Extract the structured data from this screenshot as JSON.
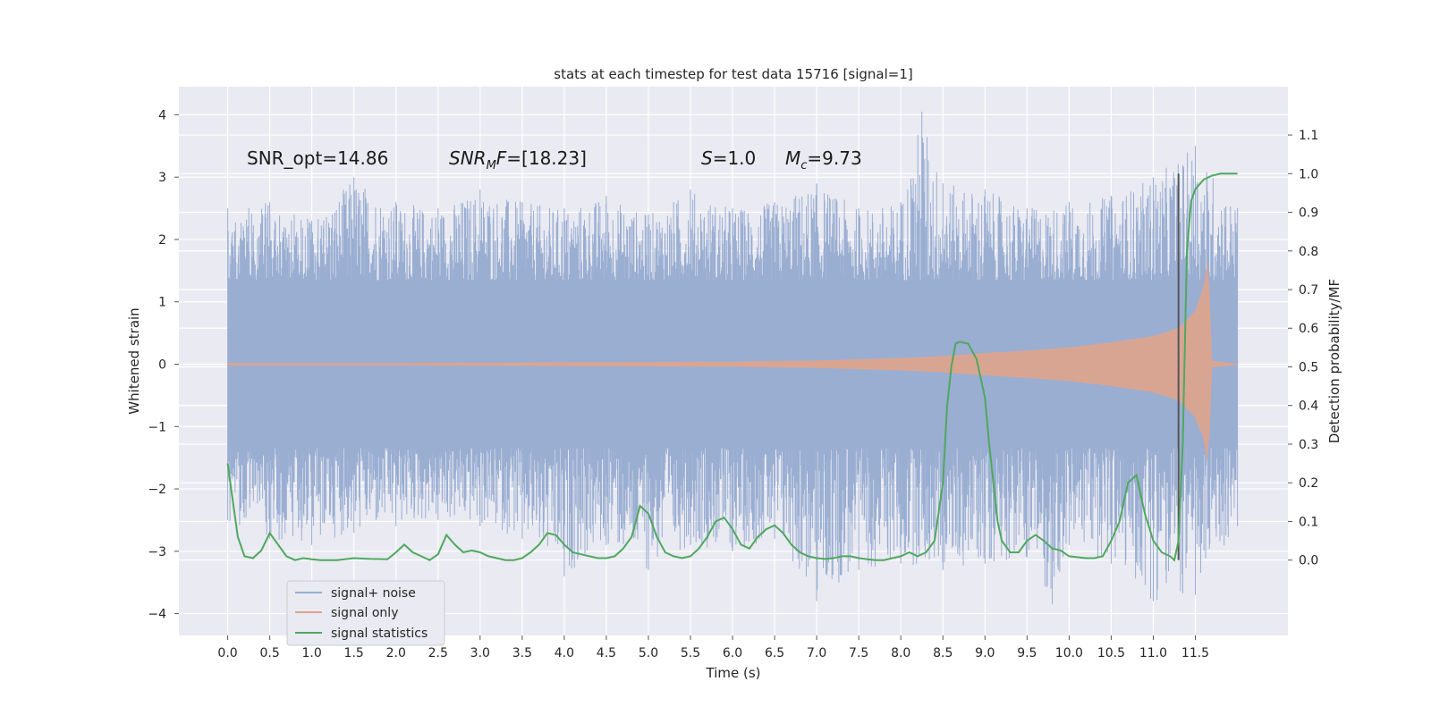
{
  "chart_data": {
    "type": "line",
    "title": "stats at each timestep for test data 15716 [signal=1]",
    "xlabel": "Time (s)",
    "ylabel": "Whitened strain",
    "y2label": "Detection probability/MF",
    "xlim": [
      -0.58,
      12.6
    ],
    "ylim": [
      -4.35,
      4.45
    ],
    "y2lim": [
      -0.195,
      1.225
    ],
    "x_ticks": [
      "0.0",
      "0.5",
      "1.0",
      "1.5",
      "2.0",
      "2.5",
      "3.0",
      "3.5",
      "4.0",
      "4.5",
      "5.0",
      "5.5",
      "6.0",
      "6.5",
      "7.0",
      "7.5",
      "8.0",
      "8.5",
      "9.0",
      "9.5",
      "10.0",
      "10.5",
      "11.0",
      "11.5"
    ],
    "y_ticks": [
      "4",
      "3",
      "2",
      "1",
      "0",
      "−1",
      "−2",
      "−3",
      "−4"
    ],
    "y2_ticks": [
      "1.1",
      "1.0",
      "0.9",
      "0.8",
      "0.7",
      "0.6",
      "0.5",
      "0.4",
      "0.3",
      "0.2",
      "0.1",
      "0.0"
    ],
    "grid": true,
    "legend_position": "lower-left",
    "annotations": [
      {
        "text": "SNR_opt=14.86",
        "x": 0.2,
        "y": 3.25
      },
      {
        "text_main": "SNR",
        "text_sub": "M",
        "text_rest": "F=[18.23]",
        "x": 2.6,
        "y": 3.25
      },
      {
        "text_main": "S",
        "text_rest": "=1.0",
        "x": 5.6,
        "y": 3.25
      },
      {
        "text_main": "M",
        "text_sub": "c",
        "text_rest": "=9.73",
        "x": 6.6,
        "y": 3.25
      }
    ],
    "vline_x": 11.3,
    "series": [
      {
        "name": "signal+ noise",
        "color": "#9aaed2",
        "x_range": [
          0.0,
          12.0
        ],
        "band_upper": [
          [
            0.0,
            2.5
          ],
          [
            0.5,
            2.6
          ],
          [
            1.0,
            2.3
          ],
          [
            1.5,
            3.0
          ],
          [
            2.0,
            2.6
          ],
          [
            2.5,
            2.5
          ],
          [
            3.0,
            2.8
          ],
          [
            3.5,
            2.6
          ],
          [
            4.0,
            2.5
          ],
          [
            4.5,
            2.7
          ],
          [
            5.0,
            2.4
          ],
          [
            5.5,
            2.8
          ],
          [
            6.0,
            2.5
          ],
          [
            6.5,
            2.6
          ],
          [
            7.0,
            2.9
          ],
          [
            7.5,
            2.5
          ],
          [
            8.0,
            2.6
          ],
          [
            8.25,
            4.05
          ],
          [
            8.5,
            2.9
          ],
          [
            9.0,
            2.8
          ],
          [
            9.5,
            2.5
          ],
          [
            10.0,
            2.6
          ],
          [
            10.5,
            2.7
          ],
          [
            11.0,
            3.0
          ],
          [
            11.5,
            3.5
          ],
          [
            12.0,
            2.5
          ]
        ],
        "band_lower": [
          [
            0.0,
            -2.5
          ],
          [
            0.5,
            -2.8
          ],
          [
            1.0,
            -2.9
          ],
          [
            1.5,
            -2.7
          ],
          [
            2.0,
            -2.6
          ],
          [
            2.5,
            -2.5
          ],
          [
            3.0,
            -2.6
          ],
          [
            3.5,
            -2.8
          ],
          [
            4.0,
            -3.4
          ],
          [
            4.5,
            -2.9
          ],
          [
            5.0,
            -3.3
          ],
          [
            5.5,
            -2.9
          ],
          [
            6.0,
            -3.0
          ],
          [
            6.5,
            -2.8
          ],
          [
            7.0,
            -3.8
          ],
          [
            7.5,
            -3.3
          ],
          [
            8.0,
            -3.2
          ],
          [
            8.5,
            -3.3
          ],
          [
            9.0,
            -3.2
          ],
          [
            9.5,
            -3.1
          ],
          [
            9.8,
            -3.85
          ],
          [
            10.0,
            -2.9
          ],
          [
            10.5,
            -3.2
          ],
          [
            11.0,
            -3.8
          ],
          [
            11.5,
            -3.7
          ],
          [
            12.0,
            -2.6
          ]
        ]
      },
      {
        "name": "signal only",
        "color": "#e0a48c",
        "envelope": [
          [
            0.0,
            0.02
          ],
          [
            2.0,
            0.02
          ],
          [
            4.0,
            0.03
          ],
          [
            6.0,
            0.04
          ],
          [
            7.0,
            0.06
          ],
          [
            8.0,
            0.1
          ],
          [
            8.5,
            0.13
          ],
          [
            9.0,
            0.18
          ],
          [
            9.5,
            0.22
          ],
          [
            10.0,
            0.27
          ],
          [
            10.5,
            0.35
          ],
          [
            11.0,
            0.45
          ],
          [
            11.3,
            0.58
          ],
          [
            11.5,
            0.85
          ],
          [
            11.6,
            1.25
          ],
          [
            11.66,
            1.85
          ],
          [
            11.68,
            0.4
          ],
          [
            11.7,
            0.05
          ],
          [
            12.0,
            0.01
          ]
        ]
      },
      {
        "name": "signal statistics",
        "color": "#4fa85e",
        "axis": "right",
        "points": [
          [
            0.0,
            0.25
          ],
          [
            0.05,
            0.17
          ],
          [
            0.12,
            0.06
          ],
          [
            0.2,
            0.01
          ],
          [
            0.3,
            0.005
          ],
          [
            0.4,
            0.025
          ],
          [
            0.5,
            0.07
          ],
          [
            0.6,
            0.04
          ],
          [
            0.7,
            0.01
          ],
          [
            0.8,
            0.0
          ],
          [
            0.9,
            0.005
          ],
          [
            1.0,
            0.002
          ],
          [
            1.1,
            0.0
          ],
          [
            1.3,
            0.0
          ],
          [
            1.5,
            0.005
          ],
          [
            1.7,
            0.003
          ],
          [
            1.9,
            0.002
          ],
          [
            2.0,
            0.02
          ],
          [
            2.1,
            0.04
          ],
          [
            2.2,
            0.02
          ],
          [
            2.3,
            0.01
          ],
          [
            2.4,
            0.0
          ],
          [
            2.5,
            0.015
          ],
          [
            2.6,
            0.065
          ],
          [
            2.7,
            0.04
          ],
          [
            2.8,
            0.02
          ],
          [
            2.9,
            0.025
          ],
          [
            3.0,
            0.02
          ],
          [
            3.1,
            0.01
          ],
          [
            3.2,
            0.005
          ],
          [
            3.3,
            0.0
          ],
          [
            3.4,
            0.0
          ],
          [
            3.5,
            0.005
          ],
          [
            3.6,
            0.02
          ],
          [
            3.7,
            0.04
          ],
          [
            3.8,
            0.07
          ],
          [
            3.9,
            0.065
          ],
          [
            4.0,
            0.04
          ],
          [
            4.1,
            0.02
          ],
          [
            4.2,
            0.015
          ],
          [
            4.3,
            0.01
          ],
          [
            4.4,
            0.005
          ],
          [
            4.5,
            0.005
          ],
          [
            4.6,
            0.01
          ],
          [
            4.7,
            0.03
          ],
          [
            4.8,
            0.06
          ],
          [
            4.9,
            0.14
          ],
          [
            5.0,
            0.12
          ],
          [
            5.1,
            0.06
          ],
          [
            5.2,
            0.02
          ],
          [
            5.3,
            0.01
          ],
          [
            5.4,
            0.005
          ],
          [
            5.5,
            0.01
          ],
          [
            5.6,
            0.03
          ],
          [
            5.7,
            0.06
          ],
          [
            5.8,
            0.1
          ],
          [
            5.9,
            0.11
          ],
          [
            6.0,
            0.08
          ],
          [
            6.1,
            0.04
          ],
          [
            6.2,
            0.03
          ],
          [
            6.3,
            0.06
          ],
          [
            6.4,
            0.08
          ],
          [
            6.5,
            0.09
          ],
          [
            6.6,
            0.07
          ],
          [
            6.7,
            0.04
          ],
          [
            6.8,
            0.02
          ],
          [
            6.9,
            0.01
          ],
          [
            7.0,
            0.005
          ],
          [
            7.1,
            0.003
          ],
          [
            7.2,
            0.005
          ],
          [
            7.3,
            0.01
          ],
          [
            7.4,
            0.01
          ],
          [
            7.5,
            0.005
          ],
          [
            7.6,
            0.002
          ],
          [
            7.7,
            0.0
          ],
          [
            7.8,
            0.0
          ],
          [
            7.9,
            0.005
          ],
          [
            8.0,
            0.01
          ],
          [
            8.1,
            0.02
          ],
          [
            8.2,
            0.01
          ],
          [
            8.3,
            0.02
          ],
          [
            8.4,
            0.05
          ],
          [
            8.5,
            0.2
          ],
          [
            8.55,
            0.4
          ],
          [
            8.6,
            0.5
          ],
          [
            8.65,
            0.56
          ],
          [
            8.7,
            0.565
          ],
          [
            8.8,
            0.56
          ],
          [
            8.9,
            0.52
          ],
          [
            9.0,
            0.42
          ],
          [
            9.05,
            0.3
          ],
          [
            9.1,
            0.2
          ],
          [
            9.15,
            0.1
          ],
          [
            9.2,
            0.05
          ],
          [
            9.3,
            0.02
          ],
          [
            9.4,
            0.02
          ],
          [
            9.5,
            0.05
          ],
          [
            9.6,
            0.065
          ],
          [
            9.7,
            0.05
          ],
          [
            9.8,
            0.03
          ],
          [
            9.9,
            0.025
          ],
          [
            10.0,
            0.01
          ],
          [
            10.2,
            0.005
          ],
          [
            10.3,
            0.005
          ],
          [
            10.4,
            0.01
          ],
          [
            10.5,
            0.05
          ],
          [
            10.6,
            0.1
          ],
          [
            10.7,
            0.2
          ],
          [
            10.8,
            0.22
          ],
          [
            10.9,
            0.12
          ],
          [
            11.0,
            0.05
          ],
          [
            11.1,
            0.02
          ],
          [
            11.2,
            0.01
          ],
          [
            11.25,
            0.0
          ],
          [
            11.3,
            0.05
          ],
          [
            11.35,
            0.3
          ],
          [
            11.4,
            0.8
          ],
          [
            11.45,
            0.93
          ],
          [
            11.5,
            0.96
          ],
          [
            11.6,
            0.985
          ],
          [
            11.7,
            0.995
          ],
          [
            11.8,
            1.0
          ],
          [
            12.0,
            1.0
          ]
        ]
      }
    ]
  }
}
